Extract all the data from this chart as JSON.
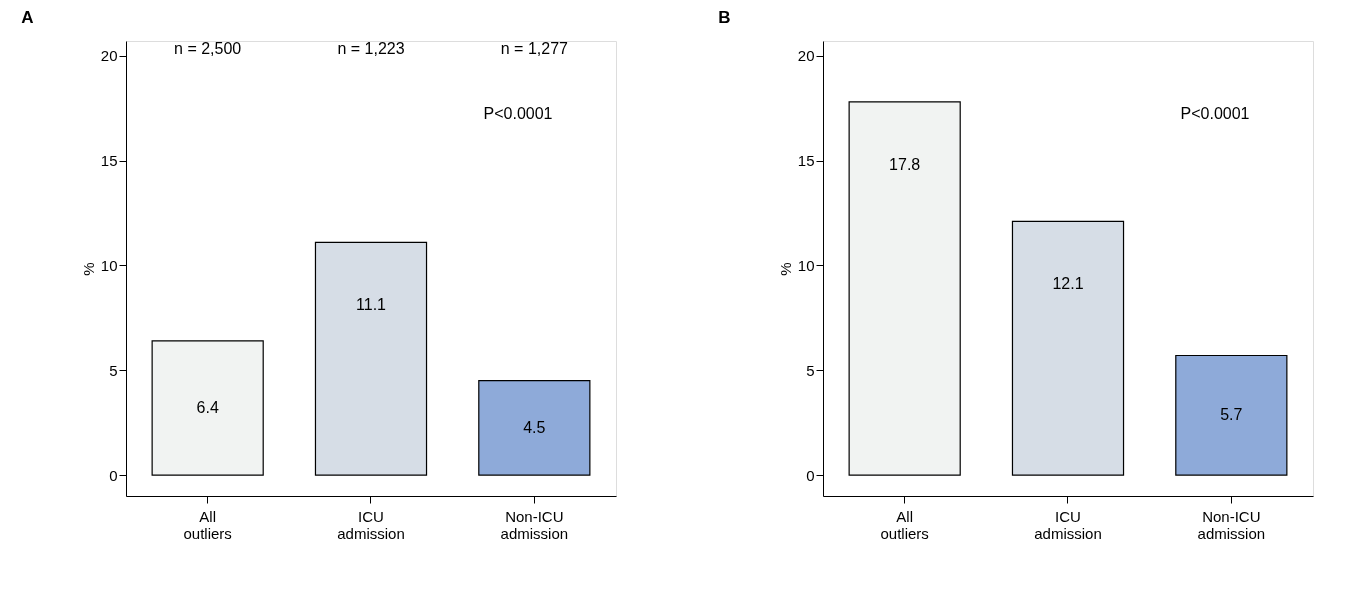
{
  "chart_data": [
    {
      "type": "bar",
      "title": "A",
      "ylabel": "%",
      "categories": [
        "All outliers",
        "ICU admission",
        "Non-ICU admission"
      ],
      "values": [
        6.4,
        11.1,
        4.5
      ],
      "colors": [
        "#f1f3f2",
        "#d6dde6",
        "#8eaad9"
      ],
      "data_labels": true,
      "ylim": [
        -1,
        20.7
      ],
      "yticks": [
        0,
        5,
        10,
        15,
        20
      ],
      "annotations": [
        "n = 2,500",
        "n = 1,223",
        "n = 1,277",
        "P<0.0001"
      ]
    },
    {
      "type": "bar",
      "title": "B",
      "ylabel": "%",
      "categories": [
        "All outliers",
        "ICU admission",
        "Non-ICU admission"
      ],
      "values": [
        17.8,
        12.1,
        5.7
      ],
      "colors": [
        "#f1f3f2",
        "#d6dde6",
        "#8eaad9"
      ],
      "data_labels": true,
      "ylim": [
        -1,
        20.7
      ],
      "yticks": [
        0,
        5,
        10,
        15,
        20
      ],
      "annotations": [
        "P<0.0001"
      ]
    }
  ]
}
